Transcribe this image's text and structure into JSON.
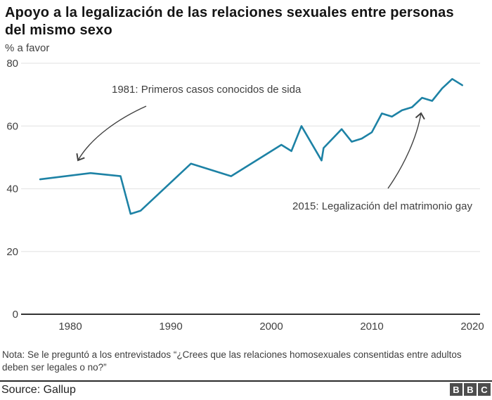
{
  "header": {
    "title": "Apoyo a la legalización de las relaciones sexuales entre personas del mismo sexo",
    "subtitle": "% a favor"
  },
  "chart_data": {
    "type": "line",
    "title": "Apoyo a la legalización de las relaciones sexuales entre personas del mismo sexo",
    "ylabel": "% a favor",
    "xlabel": "",
    "xlim": [
      1975,
      2021
    ],
    "ylim": [
      0,
      80
    ],
    "x_ticks": [
      1980,
      1990,
      2000,
      2010,
      2020
    ],
    "y_ticks": [
      0,
      20,
      40,
      60,
      80
    ],
    "grid": "horizontal",
    "legend": "none",
    "line_color": "#1d82a5",
    "axis_color": "#333333",
    "grid_color": "#e7e7e7",
    "points": [
      {
        "year": 1977,
        "value": 43
      },
      {
        "year": 1982,
        "value": 45
      },
      {
        "year": 1985,
        "value": 44
      },
      {
        "year": 1986,
        "value": 32
      },
      {
        "year": 1987,
        "value": 33
      },
      {
        "year": 1992,
        "value": 48
      },
      {
        "year": 1996,
        "value": 44
      },
      {
        "year": 1999,
        "value": 50
      },
      {
        "year": 2001,
        "value": 54
      },
      {
        "year": 2002,
        "value": 52
      },
      {
        "year": 2003,
        "value": 60
      },
      {
        "year": 2005,
        "value": 49
      },
      {
        "year": 2005.2,
        "value": 53
      },
      {
        "year": 2007,
        "value": 59
      },
      {
        "year": 2008,
        "value": 55
      },
      {
        "year": 2009,
        "value": 56
      },
      {
        "year": 2010,
        "value": 58
      },
      {
        "year": 2011,
        "value": 64
      },
      {
        "year": 2012,
        "value": 63
      },
      {
        "year": 2013,
        "value": 65
      },
      {
        "year": 2014,
        "value": 66
      },
      {
        "year": 2015,
        "value": 69
      },
      {
        "year": 2016,
        "value": 68
      },
      {
        "year": 2017,
        "value": 72
      },
      {
        "year": 2018,
        "value": 75
      },
      {
        "year": 2019,
        "value": 73
      }
    ],
    "annotations": [
      {
        "label": "1981: Primeros casos conocidos de sida"
      },
      {
        "label": "2015: Legalización del matrimonio gay"
      }
    ]
  },
  "footer": {
    "note": "Nota: Se le preguntó a los entrevistados “¿Crees que las relaciones homosexuales consentidas entre adultos deben ser legales o no?”",
    "source": "Source: Gallup",
    "logo_letters": [
      "B",
      "B",
      "C"
    ]
  }
}
